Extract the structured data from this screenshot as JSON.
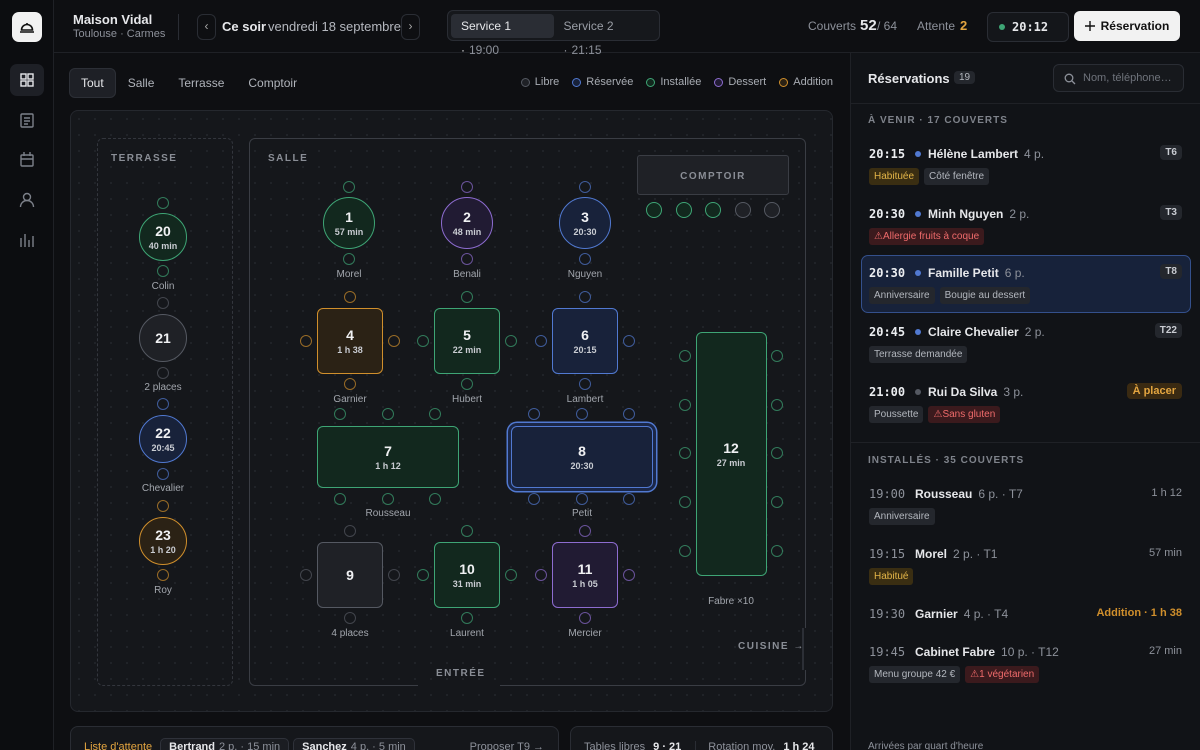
{
  "header": {
    "brand": "Maison Vidal",
    "location": "Toulouse · Carmes",
    "prev": "‹",
    "day": "Ce soir",
    "date": "vendredi 18 septembre",
    "next": "›",
    "services": [
      {
        "name": "Service 1 ·",
        "time": "19:00",
        "active": true
      },
      {
        "name": "Service 2 ·",
        "time": "21:15",
        "active": false
      }
    ],
    "covers": {
      "label": "Couverts",
      "value": "52",
      "capacity": "/ 64"
    },
    "waiting": {
      "label": "Attente",
      "value": "2"
    },
    "clock": "20:12",
    "new_button": "Réservation"
  },
  "filters": {
    "tabs": [
      "Tout",
      "Salle",
      "Terrasse",
      "Comptoir"
    ],
    "active": 0
  },
  "legend": [
    {
      "label": "Libre",
      "status": "free"
    },
    {
      "label": "Réservée",
      "status": "reserved"
    },
    {
      "label": "Installée",
      "status": "installed"
    },
    {
      "label": "Dessert",
      "status": "dessert"
    },
    {
      "label": "Addition",
      "status": "addition"
    }
  ],
  "floor": {
    "zones": {
      "terrasse": "TERRASSE",
      "salle": "SALLE",
      "comptoir": "COMPTOIR",
      "cuisine": "CUISINE →",
      "entree": "ENTRÉE"
    },
    "counter_seats": [
      "installed",
      "installed",
      "installed",
      "free",
      "free"
    ],
    "tables": [
      {
        "number": "20",
        "sub": "40 min",
        "label": "Colin",
        "status": "installed",
        "shape": "circle"
      },
      {
        "number": "21",
        "label": "2 places",
        "status": "free",
        "shape": "circle"
      },
      {
        "number": "22",
        "sub": "20:45",
        "label": "Chevalier",
        "status": "reserved",
        "shape": "circle"
      },
      {
        "number": "23",
        "sub": "1 h 20",
        "label": "Roy",
        "status": "addition",
        "shape": "circle"
      },
      {
        "number": "1",
        "sub": "57 min",
        "label": "Morel",
        "status": "installed",
        "shape": "circle"
      },
      {
        "number": "2",
        "sub": "48 min",
        "label": "Benali",
        "status": "dessert",
        "shape": "circle"
      },
      {
        "number": "3",
        "sub": "20:30",
        "label": "Nguyen",
        "status": "reserved",
        "shape": "circle"
      },
      {
        "number": "4",
        "sub": "1 h 38",
        "label": "Garnier",
        "status": "addition",
        "shape": "rect"
      },
      {
        "number": "5",
        "sub": "22 min",
        "label": "Hubert",
        "status": "installed",
        "shape": "rect"
      },
      {
        "number": "6",
        "sub": "20:15",
        "label": "Lambert",
        "status": "reserved",
        "shape": "rect"
      },
      {
        "number": "7",
        "sub": "1 h 12",
        "label": "Rousseau",
        "status": "installed",
        "shape": "rect"
      },
      {
        "number": "8",
        "sub": "20:30",
        "label": "Petit",
        "status": "reserved",
        "shape": "rect",
        "selected": true
      },
      {
        "number": "12",
        "sub": "27 min",
        "label": "Fabre ×10",
        "status": "installed",
        "shape": "rect"
      },
      {
        "number": "9",
        "label": "4 places",
        "status": "free",
        "shape": "rect"
      },
      {
        "number": "10",
        "sub": "31 min",
        "label": "Laurent",
        "status": "installed",
        "shape": "rect"
      },
      {
        "number": "11",
        "sub": "1 h 05",
        "label": "Mercier",
        "status": "dessert",
        "shape": "rect"
      }
    ]
  },
  "reservations": {
    "title": "Réservations",
    "count": "19",
    "search_placeholder": "Nom, téléphone…",
    "sections": [
      {
        "title": "À VENIR · 17 COUVERTS",
        "items": [
          {
            "time": "20:15",
            "name": "Hélène Lambert",
            "party": "4 p.",
            "table": "T6",
            "status": "reserved",
            "tags": [
              {
                "text": "Habituée",
                "tone": "gold"
              },
              {
                "text": "Côté fenêtre",
                "tone": "neutral"
              }
            ]
          },
          {
            "time": "20:30",
            "name": "Minh Nguyen",
            "party": "2 p.",
            "table": "T3",
            "status": "reserved",
            "tags": [
              {
                "text": "⚠Allergie fruits à coque",
                "tone": "red"
              }
            ]
          },
          {
            "time": "20:30",
            "name": "Famille Petit",
            "party": "6 p.",
            "table": "T8",
            "status": "reserved",
            "selected": true,
            "tags": [
              {
                "text": "Anniversaire",
                "tone": "neutral"
              },
              {
                "text": "Bougie au dessert",
                "tone": "neutral"
              }
            ]
          },
          {
            "time": "20:45",
            "name": "Claire Chevalier",
            "party": "2 p.",
            "table": "T22",
            "status": "reserved",
            "tags": [
              {
                "text": "Terrasse demandée",
                "tone": "neutral"
              }
            ]
          },
          {
            "time": "21:00",
            "name": "Rui Da Silva",
            "party": "3 p.",
            "badge": "À placer",
            "status": "free",
            "tags": [
              {
                "text": "Poussette",
                "tone": "neutral"
              },
              {
                "text": "⚠Sans gluten",
                "tone": "red"
              }
            ]
          }
        ]
      },
      {
        "title": "INSTALLÉS · 35 COUVERTS",
        "items": [
          {
            "time": "19:00",
            "name": "Rousseau",
            "party": "6 p. · T7",
            "duration": "1 h 12",
            "tags": [
              {
                "text": "Anniversaire",
                "tone": "neutral"
              }
            ]
          },
          {
            "time": "19:15",
            "name": "Morel",
            "party": "2 p. · T1",
            "duration": "57 min",
            "tags": [
              {
                "text": "Habitué",
                "tone": "gold"
              }
            ]
          },
          {
            "time": "19:30",
            "name": "Garnier",
            "party": "4 p. · T4",
            "duration": "Addition · 1 h 38",
            "duration_status": "addition"
          },
          {
            "time": "19:45",
            "name": "Cabinet Fabre",
            "party": "10 p. · T12",
            "duration": "27 min",
            "tags": [
              {
                "text": "Menu groupe 42 €",
                "tone": "neutral"
              },
              {
                "text": "⚠1 végétarien",
                "tone": "red"
              }
            ]
          }
        ]
      }
    ],
    "footer": "Arrivées par quart d'heure"
  },
  "waitlist": {
    "label": "Liste d'attente",
    "entries": [
      {
        "name": "Bertrand",
        "detail": "2 p. · 15 min"
      },
      {
        "name": "Sanchez",
        "detail": "4 p. · 5 min"
      }
    ],
    "action": "Proposer T9 →"
  },
  "stats": [
    {
      "label": "Tables libres",
      "value": "9 · 21"
    },
    {
      "label": "Rotation moy.",
      "value": "1 h 24"
    }
  ]
}
